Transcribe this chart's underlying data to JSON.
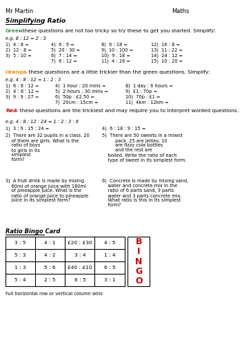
{
  "title": "Simplifying Ratio",
  "header_left": "Mr Martin",
  "header_right": "Maths",
  "green_label": "Green",
  "green_text": " - these questions are not too tricky so try these to get you started. Simplify:",
  "green_eg": "e.g. 8 : 12 = 2 : 3",
  "green_col1": [
    "1)  4 : 8 =",
    "2)  12 : 8 =",
    "3)  5 : 10 ="
  ],
  "green_col2": [
    "4)  6 : 9 =",
    "5)  20 : 30 =",
    "6)  7 : 14 =",
    "7)  6 : 12 ="
  ],
  "green_col3": [
    "8)  6 : 18 =",
    "9)  10 : 100 =",
    "10)  9 : 18 =",
    "11)  4 : 16 ="
  ],
  "green_col4": [
    "12)  16 : 8 =",
    "13)  11 : 22 =",
    "14)  24 : 12 =",
    "15)  10 : 20 ="
  ],
  "orange_label": "Orange",
  "orange_text": " - these questions are a little trickier than the green questions. Simplify:",
  "orange_eg": "e.g. 4 : 8 : 12 = 1 : 2 : 3",
  "orange_col1": [
    "1)  6 : 8 : 12 =",
    "2)  4 : 8 : 12 =",
    "3)  9 : 9 : 27 ="
  ],
  "orange_col2": [
    "4)  1 hour : 20 mins =",
    "5)  2 hours : 30 mins =",
    "6)  50p : £2.50 =",
    "7)  20cm : 15cm ="
  ],
  "orange_col3": [
    "8)  1 day : 6 hours =",
    "9)  £1 : 70p =",
    "10)  70p : £1 =",
    "11)  4km : 12km ="
  ],
  "red_label": "Red",
  "red_text": " - these questions are the trickiest and may require you to interpret worded questions.",
  "red_eg": "e.g. 4 : 8 : 12 : 24 = 1 : 2 : 3 : 6",
  "red_q1": "1)  3 : 9 : 15 : 24 =",
  "red_q4": "4)  6 : 18 : 9 : 15 =",
  "red_q2": "2)  There are 32 pupils in a class. 20\n    of them are girls. What is the\n    ratio of boys\n    to girls in its\n    simplest\n    form?",
  "red_q5": "5)  There are 50 sweets in a mixed\n         pack. 25 are jellies, 10\n         are fizzy cola bottles\n         and the rest are\n    boiled. Write the ratio of each\n    type of sweet in its simplest form.",
  "red_q3": "3)  A fruit drink is made by mixing\n    60ml of orange juice with 180ml\n    of pineapple juice. What is the\n    ratio of orange juice to pineapple\n    juice in its simplest form?",
  "red_q6": "6)  Concrete is made by mixing sand,\n    water and concrete mix in the\n    ratio of 6 parts sand, 3 parts\n    water and 3 parts concrete mix.\n    What ratio is this in its simplest\n    form?",
  "bingo_title": "Ratio Bingo Card",
  "bingo_data": [
    [
      "3 : 5",
      "4 : 1",
      "£20 : £30",
      "4 : 5"
    ],
    [
      "5 : 3",
      "4 : 2",
      "3 : 4",
      "1 : 4"
    ],
    [
      "1 : 3",
      "5 : 6",
      "£40 : £10",
      "6 : 5"
    ],
    [
      "5 : 4",
      "2 : 5",
      "6 : 5",
      "3 : 1"
    ]
  ],
  "bingo_footer": "Full horizontal row or vertical column wins",
  "bg_color": "#ffffff",
  "text_color": "#000000",
  "green_color": "#3a9c3a",
  "orange_color": "#FF8C00",
  "red_color": "#CC0000",
  "bingo_red": "#CC0000"
}
